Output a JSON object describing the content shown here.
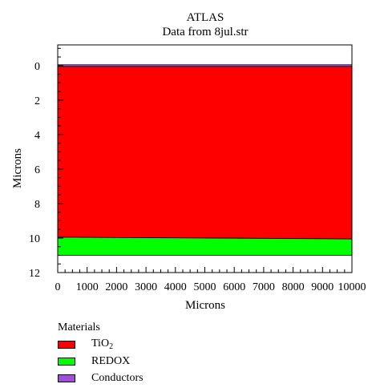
{
  "chart_data": {
    "type": "area",
    "title": "ATLAS",
    "subtitle": "Data from 8jul.str",
    "xlabel": "Microns",
    "ylabel": "Microns",
    "xlim": [
      0,
      10000
    ],
    "ylim": [
      12,
      -1.2
    ],
    "x_ticks": [
      "0",
      "1000",
      "2000",
      "3000",
      "4000",
      "5000",
      "6000",
      "7000",
      "8000",
      "9000",
      "10000"
    ],
    "y_ticks": [
      "0",
      "2",
      "4",
      "6",
      "8",
      "10",
      "12"
    ],
    "x_tick_values": [
      0,
      1000,
      2000,
      3000,
      4000,
      5000,
      6000,
      7000,
      8000,
      9000,
      10000
    ],
    "y_tick_values": [
      0,
      2,
      4,
      6,
      8,
      10,
      12
    ],
    "regions": [
      {
        "material": "Conductors",
        "color": "#a050d8",
        "x": [
          0,
          10000
        ],
        "y_top_left": -0.05,
        "y_top_right": -0.05,
        "y_bottom_left": 0.05,
        "y_bottom_right": 0.05
      },
      {
        "material": "TiO2",
        "color": "#ff0000",
        "x": [
          0,
          10000
        ],
        "y_top_left": 0.05,
        "y_top_right": 0.05,
        "y_bottom_left": 9.95,
        "y_bottom_right": 10.05
      },
      {
        "material": "REDOX",
        "color": "#00ff00",
        "x": [
          0,
          10000
        ],
        "y_top_left": 9.95,
        "y_top_right": 10.05,
        "y_bottom_left": 11.0,
        "y_bottom_right": 11.0
      }
    ],
    "legend_placement": "bottom-left"
  },
  "legend": {
    "title": "Materials",
    "items": [
      {
        "label": "TiO",
        "sub": "2",
        "color": "#ff0000"
      },
      {
        "label": "REDOX",
        "sub": "",
        "color": "#00ff00"
      },
      {
        "label": "Conductors",
        "sub": "",
        "color": "#a050d8"
      }
    ]
  }
}
